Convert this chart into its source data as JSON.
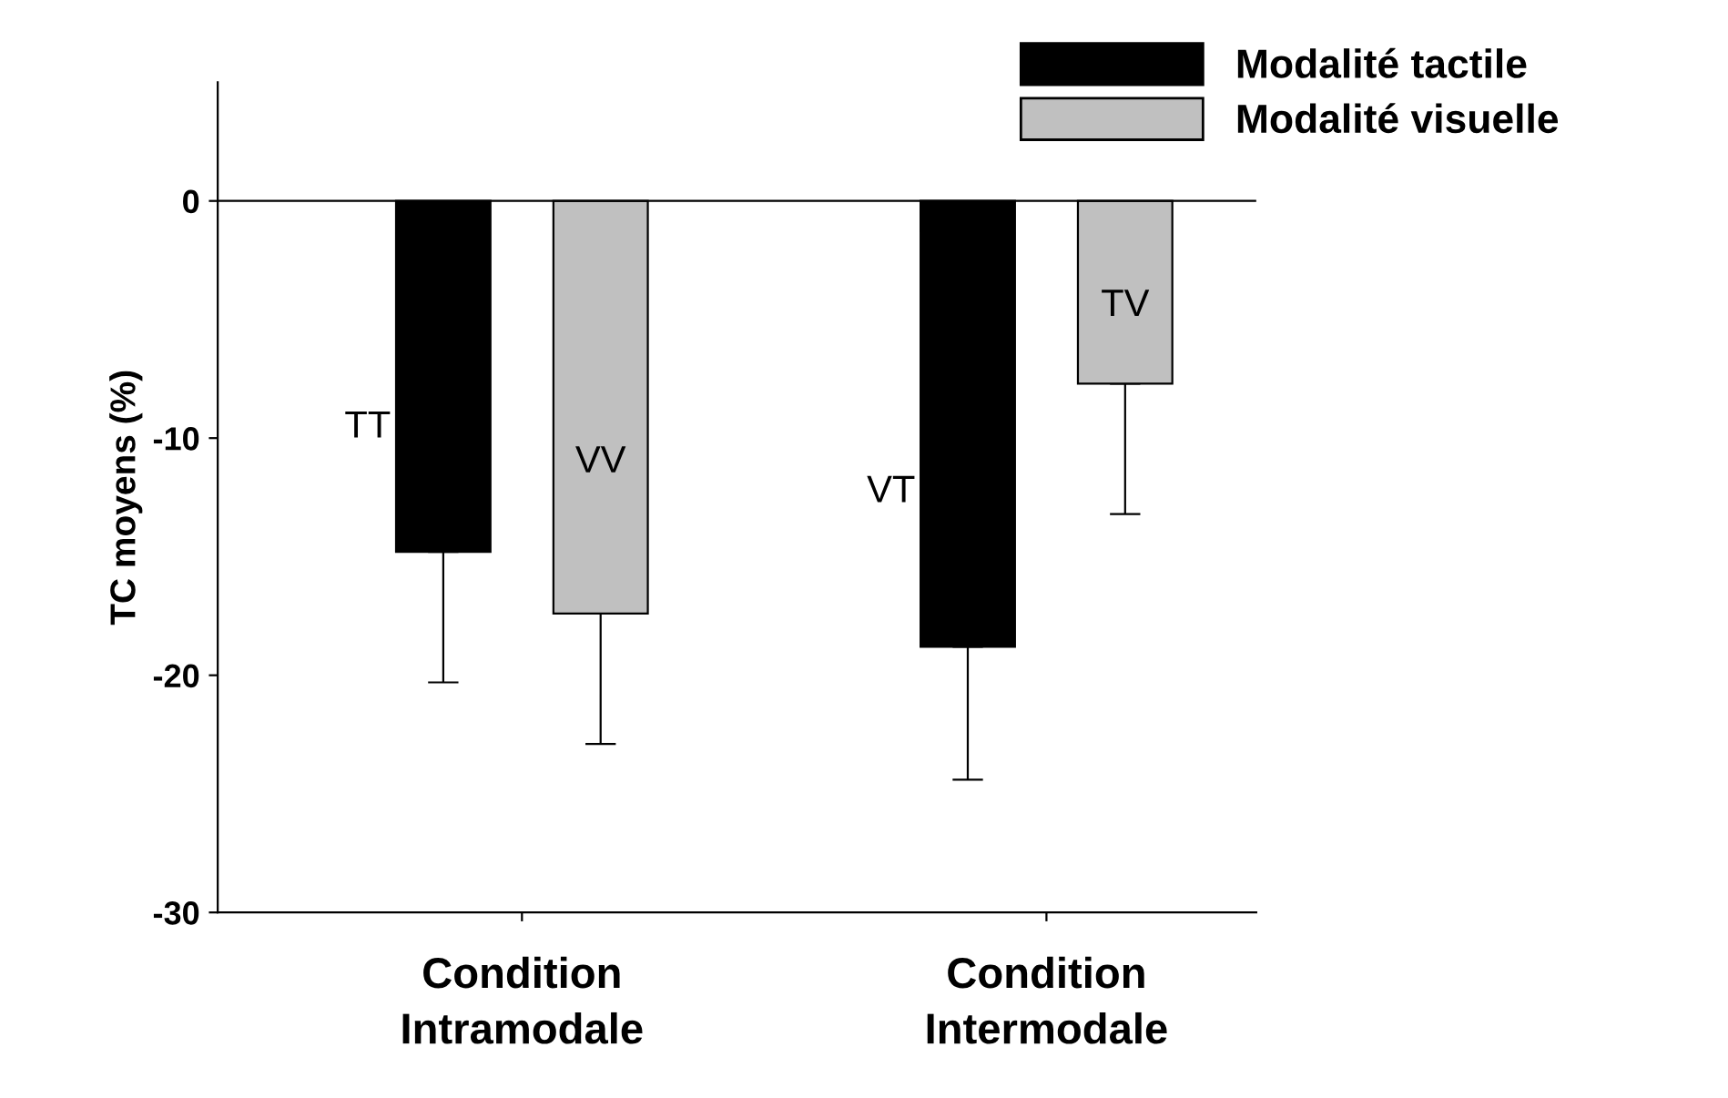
{
  "chart_data": {
    "type": "bar",
    "ylabel": "TC moyens (%)",
    "categories": [
      "Condition\nIntramodale",
      "Condition\nIntermodale"
    ],
    "series": [
      {
        "name": "Modalité tactile",
        "color": "#000000",
        "values": [
          -14.8,
          -18.8
        ],
        "errors": [
          [
            -20.3,
            -14.8
          ],
          [
            -24.4,
            -18.8
          ]
        ]
      },
      {
        "name": "Modalité visuelle",
        "color": "#c0c0c0",
        "values": [
          -17.4,
          -7.7
        ],
        "errors": [
          [
            -22.9,
            -17.4
          ],
          [
            -13.2,
            -7.7
          ]
        ]
      }
    ],
    "ylim": [
      -30,
      5
    ],
    "yticks": [
      -30,
      -20,
      -10,
      0
    ],
    "ref_lines": [
      {
        "axis": "y",
        "value": 0,
        "label": null
      }
    ],
    "annotations": [
      "TT",
      "VV",
      "VT",
      "TV"
    ],
    "grid": false,
    "legend": "top right"
  }
}
